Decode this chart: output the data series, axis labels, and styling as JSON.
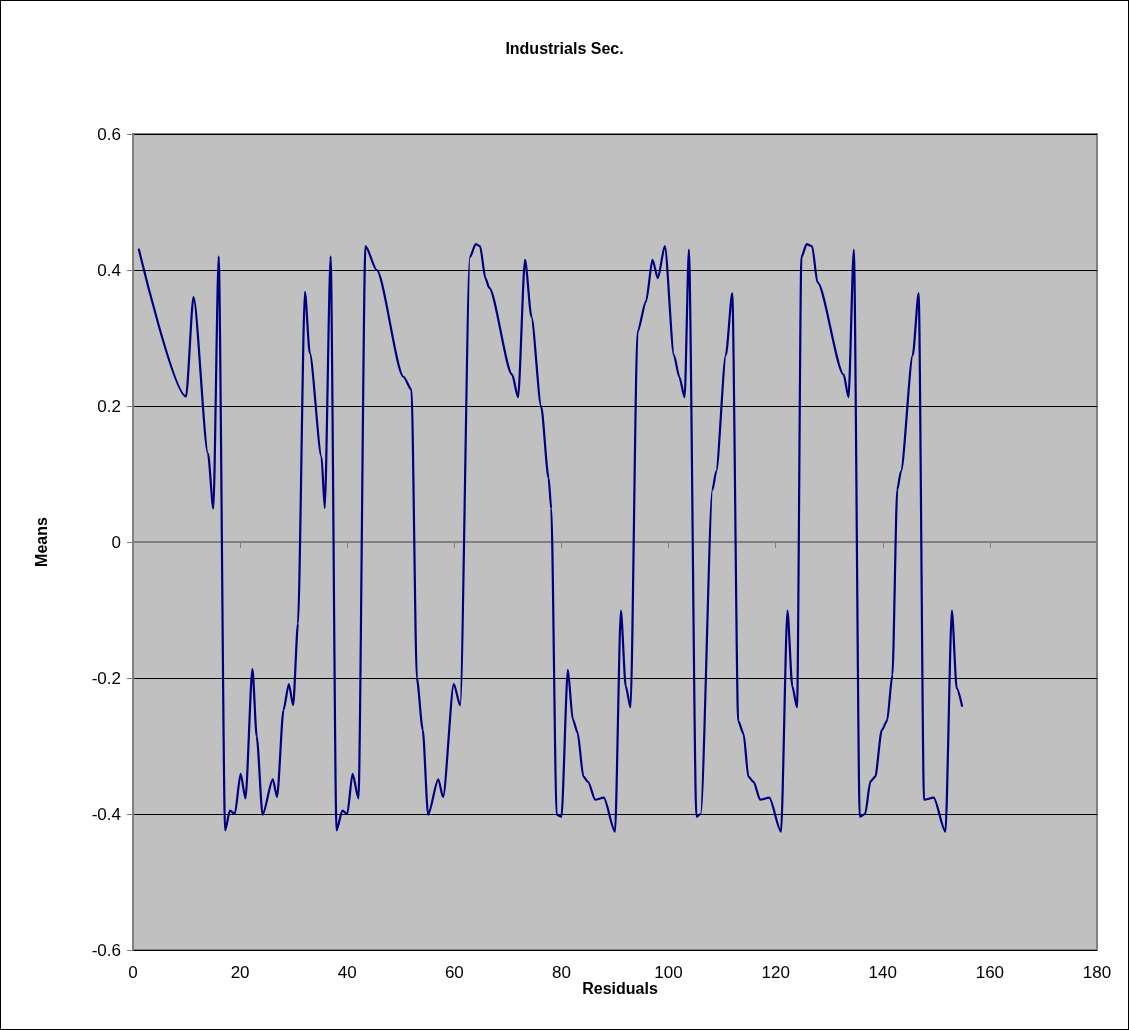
{
  "chart_data": {
    "type": "line",
    "title": "Industrials Sec.",
    "xlabel": "Residuals",
    "ylabel": "Means",
    "xlim": [
      0,
      180
    ],
    "xticks": [
      0,
      20,
      40,
      60,
      80,
      100,
      120,
      140,
      160,
      180
    ],
    "ylim": [
      -0.6,
      0.6
    ],
    "yticks": [
      -0.6,
      -0.4,
      -0.2,
      0,
      0.2,
      0.4,
      0.6
    ],
    "grid": "y",
    "marker": "none",
    "line_style": "solid",
    "series": [
      {
        "color": "#000080",
        "x": [
          1.1,
          9.9,
          11.3,
          14,
          15,
          16,
          17.2,
          18.1,
          19,
          20.1,
          21,
          22.3,
          23.1,
          24.2,
          26.1,
          26.9,
          28.1,
          29.1,
          29.9,
          30.8,
          32.1,
          33,
          35.2,
          35.8,
          36.9,
          38,
          39.1,
          40,
          41,
          42.1,
          43.4,
          45.5,
          50.5,
          52,
          53,
          54.1,
          55.1,
          57,
          57.9,
          59.9,
          61.1,
          62.9,
          64,
          64.8,
          65.8,
          66.5,
          70.8,
          71.9,
          73.2,
          74.4,
          76.2,
          77.6,
          78.1,
          79.1,
          80,
          81.2,
          82.1,
          83,
          84.1,
          85,
          86.3,
          87.9,
          90,
          91.1,
          92,
          92.9,
          94.2,
          95.8,
          97,
          98,
          99.3,
          101,
          102,
          103,
          103.8,
          105.2,
          106,
          108.2,
          108.9,
          110.7,
          111.9,
          113,
          114,
          114.9,
          115.9,
          117.1,
          118.8,
          121,
          122.2,
          123.1,
          124,
          124.8,
          125.8,
          126.8,
          127.8,
          132.7,
          133.6,
          134.6,
          135.7,
          136.7,
          137.7,
          138.6,
          139.8,
          140.8,
          141.8,
          142.7,
          143.4,
          145.6,
          146.7,
          147.7,
          149.5,
          151.7,
          152.9,
          153.8,
          154.8
        ],
        "values": [
          0.43,
          0.214,
          0.36,
          0.13,
          0.049,
          0.42,
          -0.424,
          -0.395,
          -0.4,
          -0.341,
          -0.377,
          -0.187,
          -0.286,
          -0.401,
          -0.349,
          -0.375,
          -0.247,
          -0.209,
          -0.24,
          -0.12,
          0.368,
          0.278,
          0.125,
          0.05,
          0.42,
          -0.424,
          -0.395,
          -0.4,
          -0.341,
          -0.377,
          0.435,
          0.4,
          0.243,
          0.224,
          -0.2,
          -0.276,
          -0.401,
          -0.349,
          -0.375,
          -0.209,
          -0.24,
          0.419,
          0.438,
          0.435,
          0.388,
          0.374,
          0.246,
          0.213,
          0.415,
          0.331,
          0.2,
          0.094,
          0.049,
          -0.401,
          -0.404,
          -0.188,
          -0.26,
          -0.28,
          -0.345,
          -0.353,
          -0.379,
          -0.376,
          -0.426,
          -0.101,
          -0.212,
          -0.243,
          0.309,
          0.354,
          0.415,
          0.388,
          0.435,
          0.275,
          0.243,
          0.213,
          0.43,
          -0.404,
          -0.4,
          0.077,
          0.104,
          0.275,
          0.366,
          -0.263,
          -0.282,
          -0.345,
          -0.353,
          -0.379,
          -0.376,
          -0.426,
          -0.101,
          -0.212,
          -0.243,
          0.419,
          0.438,
          0.435,
          0.382,
          0.246,
          0.213,
          0.43,
          -0.404,
          -0.4,
          -0.352,
          -0.345,
          -0.277,
          -0.263,
          -0.195,
          0.077,
          0.104,
          0.275,
          0.366,
          -0.379,
          -0.376,
          -0.426,
          -0.101,
          -0.215,
          -0.241
        ]
      }
    ]
  }
}
